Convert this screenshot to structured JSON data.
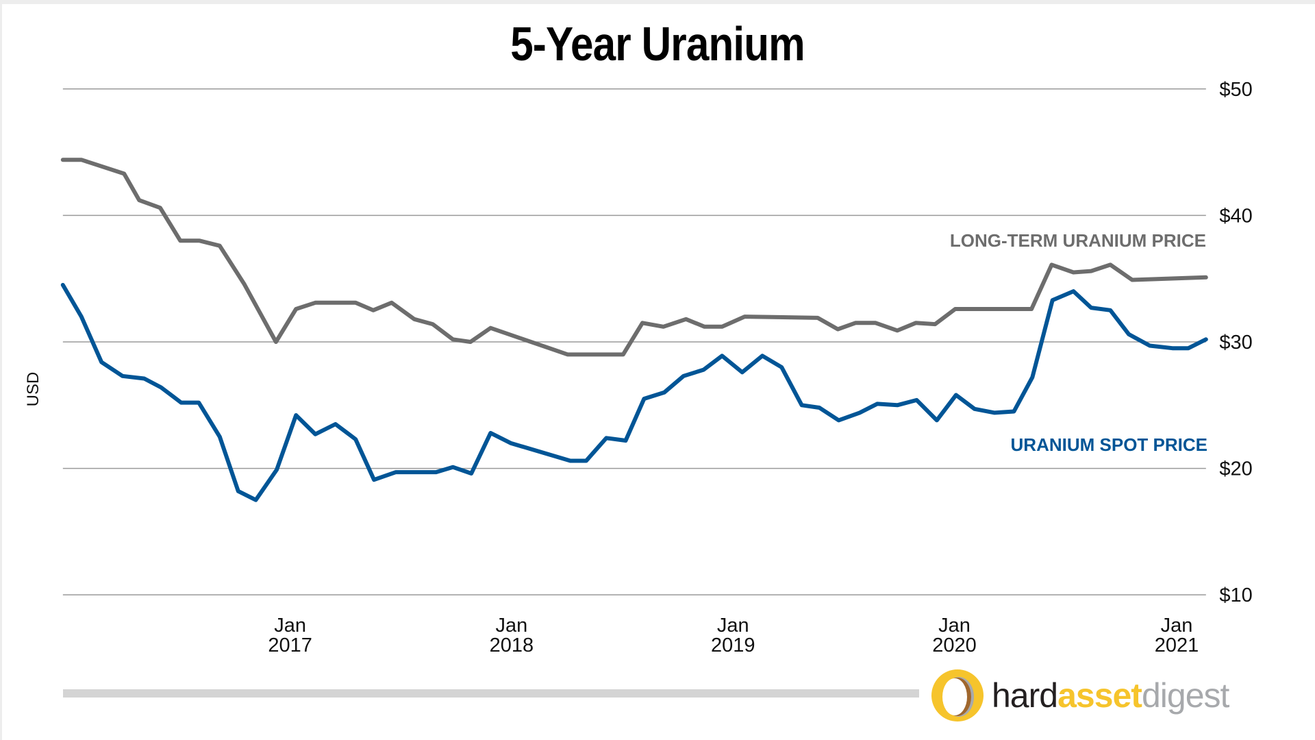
{
  "title": "5-Year Uranium",
  "y_axis": {
    "title": "USD",
    "ticks": [
      "$50",
      "$40",
      "$30",
      "$20",
      "$10"
    ]
  },
  "x_axis": {
    "ticks": [
      {
        "month": "Jan",
        "year": "2017"
      },
      {
        "month": "Jan",
        "year": "2018"
      },
      {
        "month": "Jan",
        "year": "2019"
      },
      {
        "month": "Jan",
        "year": "2020"
      },
      {
        "month": "Jan",
        "year": "2021"
      }
    ]
  },
  "series_labels": {
    "long_term": "LONG-TERM URANIUM PRICE",
    "spot": "URANIUM SPOT PRICE"
  },
  "colors": {
    "long_term": "#6d6d6d",
    "spot": "#005596",
    "grid": "#9a9a9a",
    "logo_yellow": "#f6c42c",
    "logo_brown": "#a0672d",
    "logo_gray": "#a7a9ac"
  },
  "logo": {
    "part1": "hard",
    "part2": "asset",
    "part3": "digest"
  },
  "chart_data": {
    "type": "line",
    "title": "5-Year Uranium",
    "xlabel": "",
    "ylabel": "USD",
    "ylim": [
      10,
      50
    ],
    "y_ticks": [
      10,
      20,
      30,
      40,
      50
    ],
    "x_tick_labels": [
      "Jan 2017",
      "Jan 2018",
      "Jan 2019",
      "Jan 2020",
      "Jan 2021"
    ],
    "grid": true,
    "legend_position": "inline-right",
    "series": [
      {
        "name": "LONG-TERM URANIUM PRICE",
        "color": "#6d6d6d",
        "points": [
          [
            75,
            44.4
          ],
          [
            97,
            44.4
          ],
          [
            148,
            43.3
          ],
          [
            166,
            41.2
          ],
          [
            191,
            40.6
          ],
          [
            215,
            38.0
          ],
          [
            238,
            38.0
          ],
          [
            262,
            37.6
          ],
          [
            291,
            34.6
          ],
          [
            329,
            30.0
          ],
          [
            353,
            32.6
          ],
          [
            376,
            33.1
          ],
          [
            424,
            33.1
          ],
          [
            445,
            32.5
          ],
          [
            467,
            33.1
          ],
          [
            494,
            31.8
          ],
          [
            516,
            31.4
          ],
          [
            540,
            30.2
          ],
          [
            561,
            30.0
          ],
          [
            585,
            31.1
          ],
          [
            677,
            29.0
          ],
          [
            743,
            29.0
          ],
          [
            766,
            31.5
          ],
          [
            791,
            31.2
          ],
          [
            818,
            31.8
          ],
          [
            840,
            31.2
          ],
          [
            861,
            31.2
          ],
          [
            888,
            32.0
          ],
          [
            975,
            31.9
          ],
          [
            999,
            31.0
          ],
          [
            1020,
            31.5
          ],
          [
            1044,
            31.5
          ],
          [
            1070,
            30.9
          ],
          [
            1092,
            31.5
          ],
          [
            1115,
            31.4
          ],
          [
            1139,
            32.6
          ],
          [
            1230,
            32.6
          ],
          [
            1254,
            36.1
          ],
          [
            1280,
            35.5
          ],
          [
            1301,
            35.6
          ],
          [
            1324,
            36.1
          ],
          [
            1350,
            34.9
          ],
          [
            1438,
            35.1
          ]
        ]
      },
      {
        "name": "URANIUM SPOT PRICE",
        "color": "#005596",
        "points": [
          [
            75,
            34.5
          ],
          [
            97,
            32.0
          ],
          [
            121,
            28.4
          ],
          [
            146,
            27.3
          ],
          [
            172,
            27.1
          ],
          [
            192,
            26.4
          ],
          [
            216,
            25.2
          ],
          [
            237,
            25.2
          ],
          [
            262,
            22.5
          ],
          [
            284,
            18.2
          ],
          [
            305,
            17.5
          ],
          [
            330,
            19.9
          ],
          [
            353,
            24.2
          ],
          [
            376,
            22.7
          ],
          [
            400,
            23.5
          ],
          [
            424,
            22.3
          ],
          [
            446,
            19.1
          ],
          [
            472,
            19.7
          ],
          [
            520,
            19.7
          ],
          [
            540,
            20.1
          ],
          [
            562,
            19.6
          ],
          [
            585,
            22.8
          ],
          [
            609,
            22.0
          ],
          [
            680,
            20.6
          ],
          [
            699,
            20.6
          ],
          [
            723,
            22.4
          ],
          [
            746,
            22.2
          ],
          [
            768,
            25.5
          ],
          [
            792,
            26.0
          ],
          [
            815,
            27.3
          ],
          [
            839,
            27.8
          ],
          [
            861,
            28.9
          ],
          [
            885,
            27.6
          ],
          [
            909,
            28.9
          ],
          [
            932,
            28.0
          ],
          [
            956,
            25.0
          ],
          [
            977,
            24.8
          ],
          [
            1000,
            23.8
          ],
          [
            1025,
            24.4
          ],
          [
            1046,
            25.1
          ],
          [
            1070,
            25.0
          ],
          [
            1093,
            25.4
          ],
          [
            1117,
            23.8
          ],
          [
            1140,
            25.8
          ],
          [
            1162,
            24.7
          ],
          [
            1186,
            24.4
          ],
          [
            1209,
            24.5
          ],
          [
            1231,
            27.2
          ],
          [
            1255,
            33.3
          ],
          [
            1280,
            34.0
          ],
          [
            1301,
            32.7
          ],
          [
            1324,
            32.5
          ],
          [
            1346,
            30.6
          ],
          [
            1371,
            29.7
          ],
          [
            1398,
            29.5
          ],
          [
            1417,
            29.5
          ],
          [
            1438,
            30.2
          ]
        ]
      }
    ]
  }
}
